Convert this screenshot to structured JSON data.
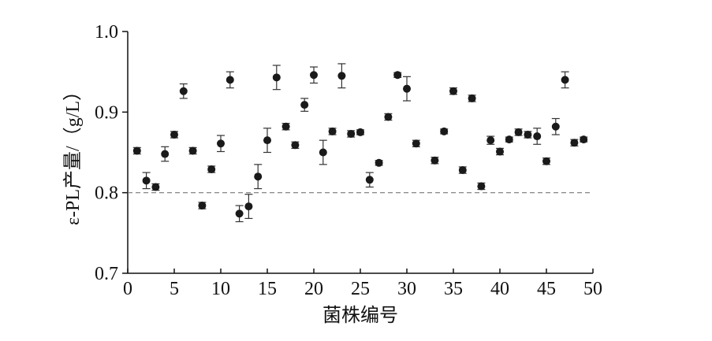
{
  "chart_data": {
    "type": "scatter",
    "x_label": "菌株编号",
    "y_label": "ε-PL产量/（g/L）",
    "x": [
      1,
      2,
      3,
      4,
      5,
      6,
      7,
      8,
      9,
      10,
      11,
      12,
      13,
      14,
      15,
      16,
      17,
      18,
      19,
      20,
      21,
      22,
      23,
      24,
      25,
      26,
      27,
      28,
      29,
      30,
      31,
      33,
      34,
      35,
      36,
      37,
      38,
      39,
      40,
      41,
      42,
      43,
      44,
      45,
      46,
      47,
      48,
      49
    ],
    "values": [
      0.852,
      0.815,
      0.807,
      0.848,
      0.872,
      0.926,
      0.852,
      0.784,
      0.829,
      0.861,
      0.94,
      0.774,
      0.783,
      0.82,
      0.865,
      0.943,
      0.882,
      0.859,
      0.909,
      0.946,
      0.85,
      0.876,
      0.945,
      0.873,
      0.875,
      0.816,
      0.837,
      0.894,
      0.946,
      0.929,
      0.861,
      0.84,
      0.876,
      0.926,
      0.828,
      0.917,
      0.808,
      0.865,
      0.851,
      0.866,
      0.875,
      0.872,
      0.87,
      0.839,
      0.882,
      0.94,
      0.862,
      0.866
    ],
    "errors": [
      0.004,
      0.01,
      0.004,
      0.009,
      0.004,
      0.009,
      0.004,
      0.004,
      0.004,
      0.01,
      0.01,
      0.01,
      0.015,
      0.015,
      0.015,
      0.015,
      0.004,
      0.004,
      0.008,
      0.01,
      0.015,
      0.004,
      0.015,
      0.004,
      0.003,
      0.009,
      0.003,
      0.004,
      0.003,
      0.015,
      0.004,
      0.004,
      0.003,
      0.004,
      0.004,
      0.004,
      0.004,
      0.005,
      0.004,
      0.003,
      0.004,
      0.004,
      0.01,
      0.004,
      0.01,
      0.01,
      0.004,
      0.003
    ],
    "color": "#1a1a1a",
    "reference_line": 0.8,
    "xlim": [
      0,
      50
    ],
    "xticks": [
      0,
      5,
      10,
      15,
      20,
      25,
      30,
      35,
      40,
      45,
      50
    ],
    "ylim": [
      0.7,
      1.0
    ],
    "yticks": [
      {
        "value": 0.7,
        "label": "0.7"
      },
      {
        "value": 0.8,
        "label": "0.8"
      },
      {
        "value": 0.9,
        "label": "0.9"
      },
      {
        "value": 1.0,
        "label": "1.0"
      }
    ]
  }
}
